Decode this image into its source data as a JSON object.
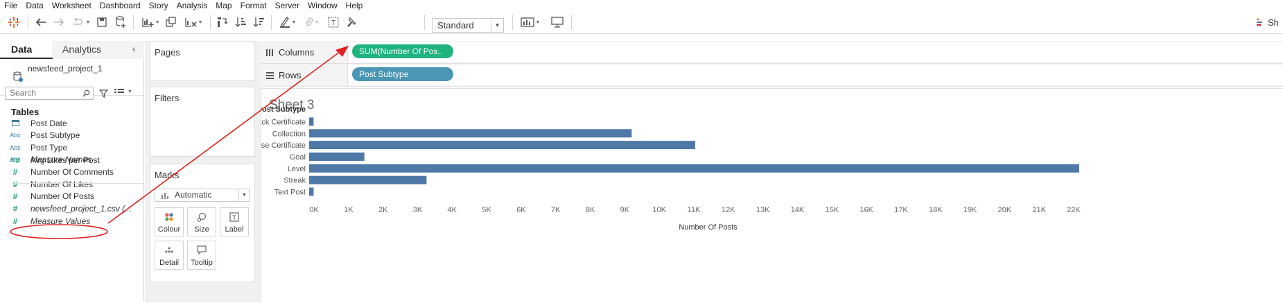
{
  "menu": [
    "File",
    "Data",
    "Worksheet",
    "Dashboard",
    "Story",
    "Analysis",
    "Map",
    "Format",
    "Server",
    "Window",
    "Help"
  ],
  "toolbar": {
    "fit_value": "Standard",
    "show_me_label": "Sh"
  },
  "data_pane": {
    "tab_data": "Data",
    "tab_analytics": "Analytics",
    "datasource": "newsfeed_project_1",
    "search_placeholder": "Search",
    "tables_title": "Tables",
    "dimensions": [
      {
        "icon": "date",
        "label": "Post Date",
        "italic": false
      },
      {
        "icon": "Abc",
        "label": "Post Subtype",
        "italic": false
      },
      {
        "icon": "Abc",
        "label": "Post Type",
        "italic": false
      },
      {
        "icon": "Abc",
        "label": "Measure Names",
        "italic": true
      }
    ],
    "measures": [
      {
        "icon": "=#",
        "label": "Avg Likes per Post",
        "italic": false
      },
      {
        "icon": "#",
        "label": "Number Of Comments",
        "italic": false
      },
      {
        "icon": "#",
        "label": "Number Of Likes",
        "italic": false
      },
      {
        "icon": "#",
        "label": "Number Of Posts",
        "italic": false
      },
      {
        "icon": "#",
        "label": "newsfeed_project_1.csv (...",
        "italic": true
      },
      {
        "icon": "#",
        "label": "Measure Values",
        "italic": true
      }
    ]
  },
  "cards": {
    "pages": "Pages",
    "filters": "Filters",
    "marks": "Marks",
    "mark_type": "Automatic",
    "mark_buttons": [
      "Colour",
      "Size",
      "Label",
      "Detail",
      "Tooltip"
    ]
  },
  "shelves": {
    "columns_label": "Columns",
    "rows_label": "Rows",
    "columns_pill": "SUM(Number Of Pos..",
    "rows_pill": "Post Subtype",
    "columns_pill_color": "#1fb37e",
    "rows_pill_color": "#4a96b5"
  },
  "sheet": {
    "title": "Sheet 3"
  },
  "chart_data": {
    "type": "bar",
    "orientation": "horizontal",
    "row_header": "Post Subtype",
    "categories": [
      "Career Track Certificate",
      "Collection",
      "Course Certificate",
      "Goal",
      "Level",
      "Streak",
      "Text Post"
    ],
    "values": [
      130,
      9340,
      11180,
      1600,
      22300,
      3400,
      130
    ],
    "xlabel": "Number Of Posts",
    "x_ticks": [
      "0K",
      "1K",
      "2K",
      "3K",
      "4K",
      "5K",
      "6K",
      "7K",
      "8K",
      "9K",
      "10K",
      "11K",
      "12K",
      "13K",
      "14K",
      "15K",
      "16K",
      "17K",
      "18K",
      "19K",
      "20K",
      "21K",
      "22K"
    ],
    "xlim": [
      0,
      22300
    ],
    "bar_color": "#4e79a7"
  },
  "annotation_color": "#e02020"
}
